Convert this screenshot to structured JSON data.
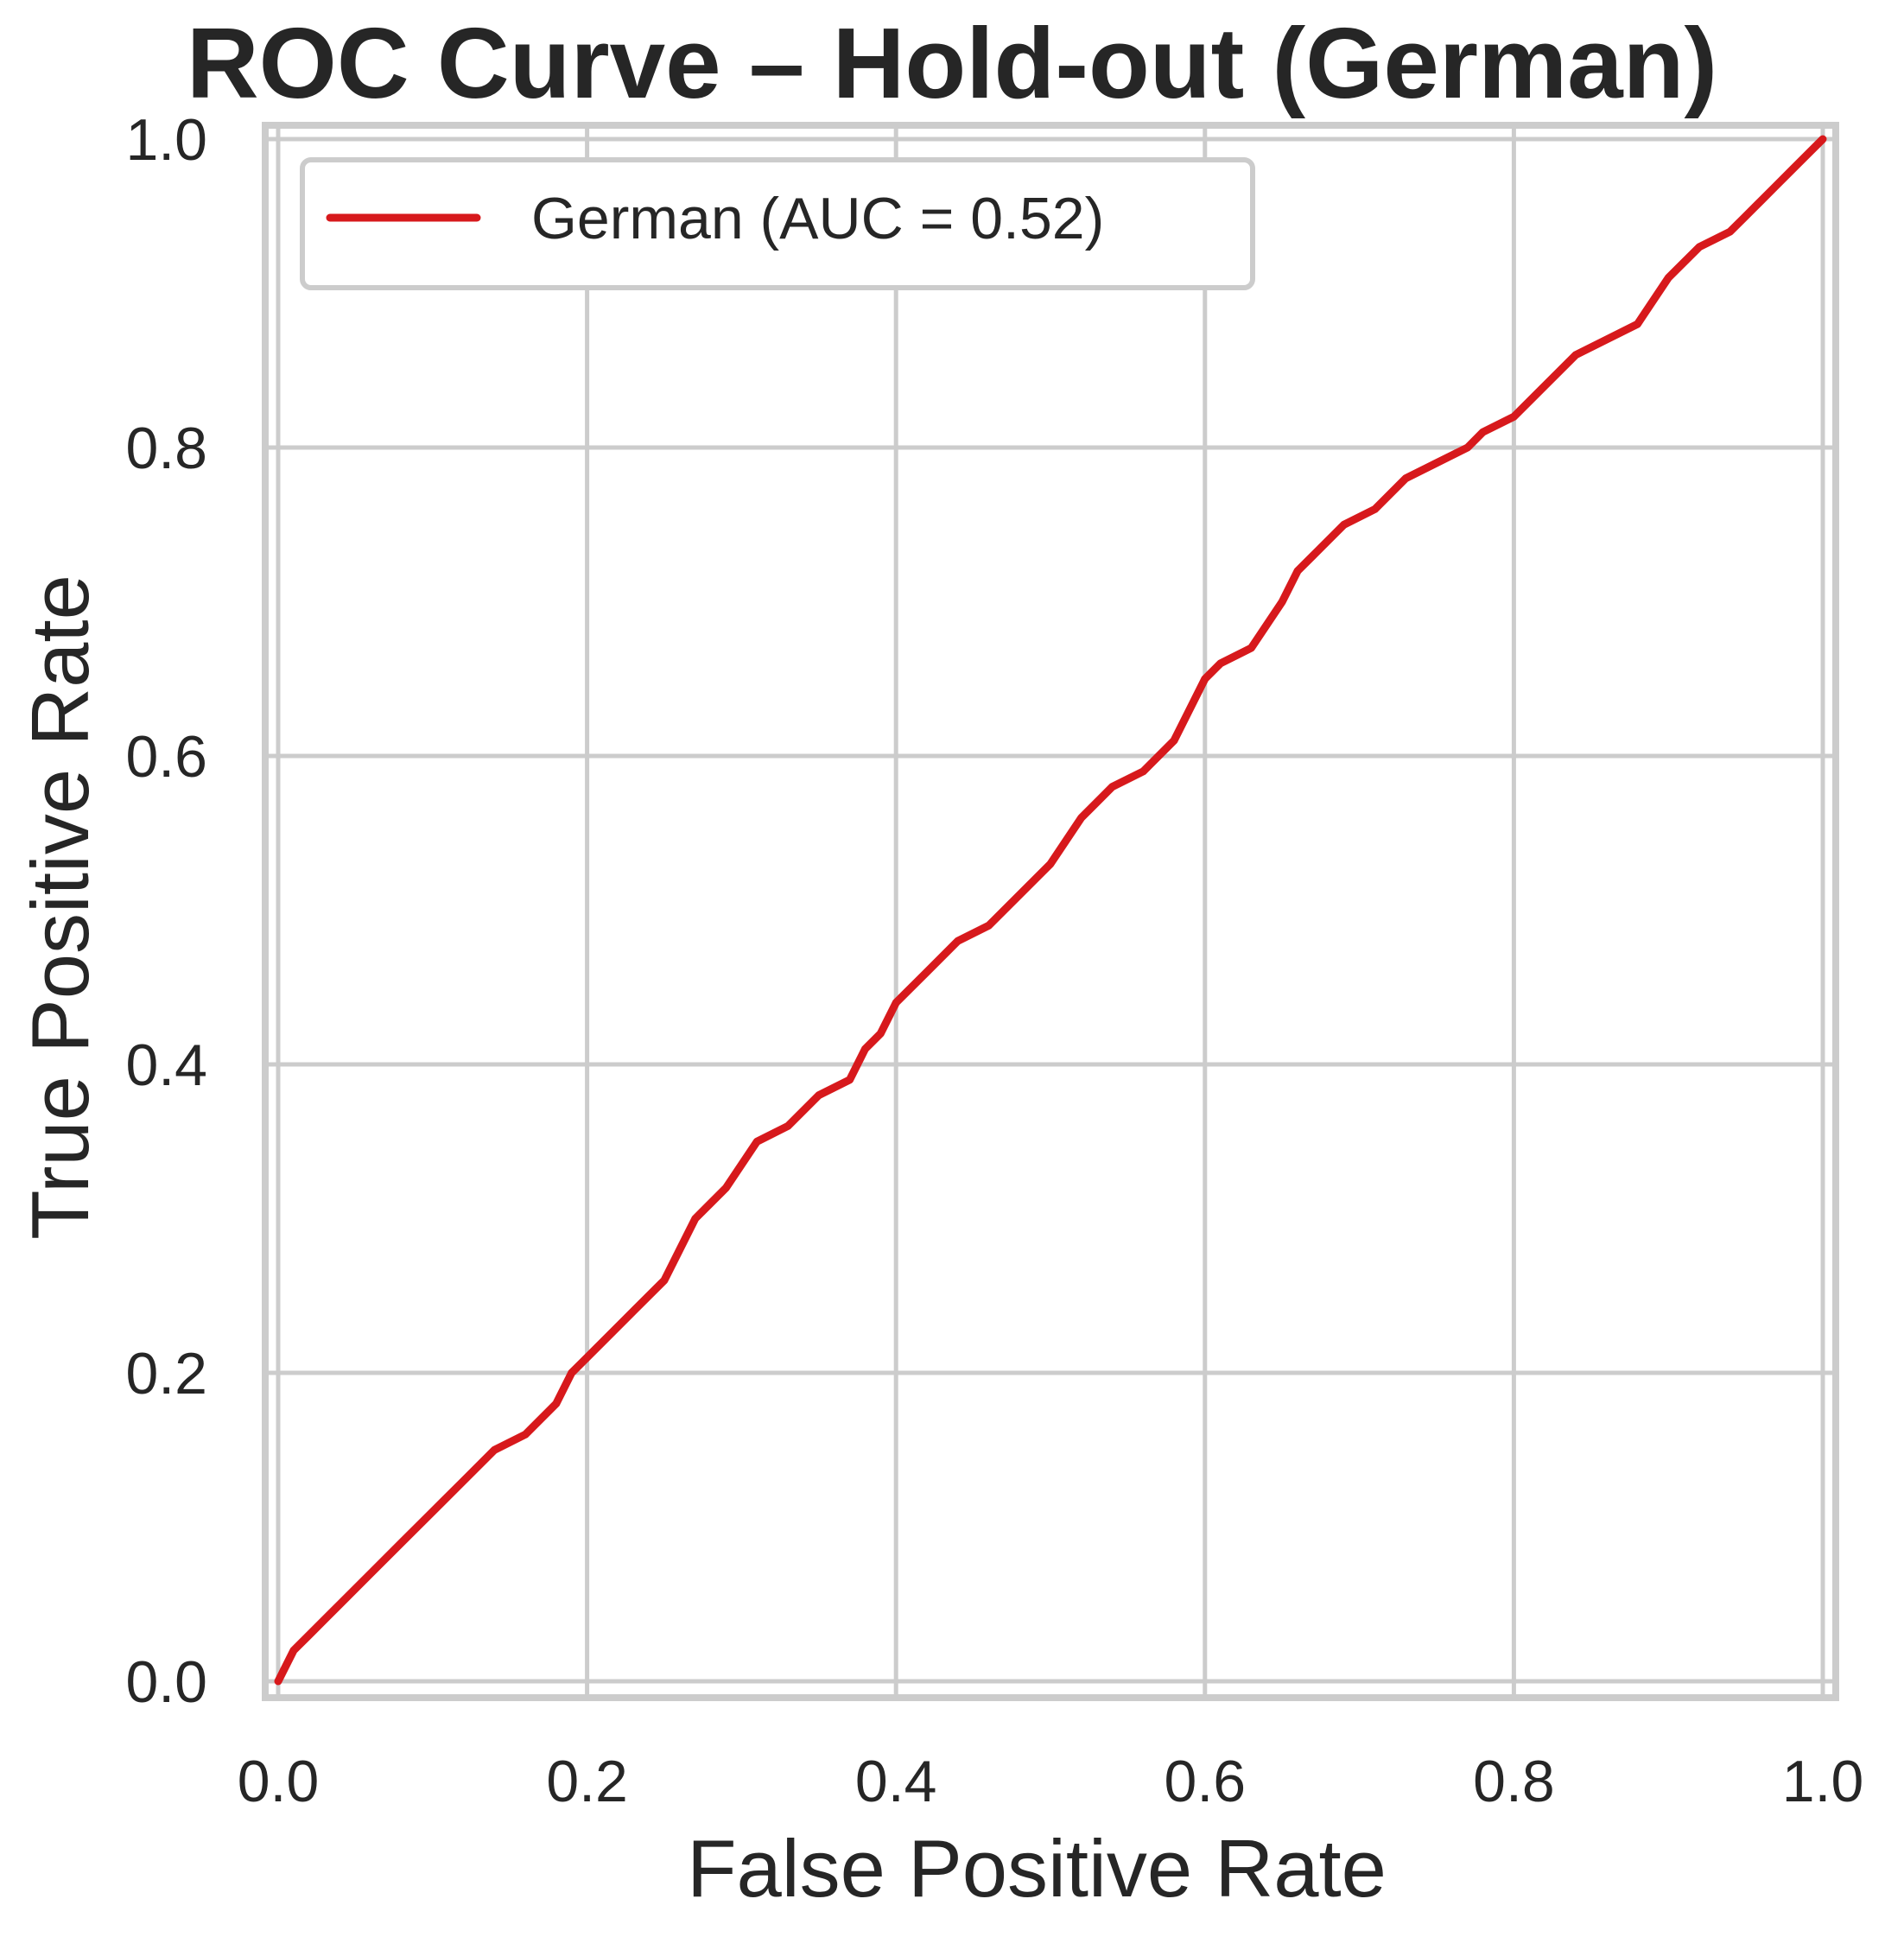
{
  "chart_data": {
    "type": "line",
    "title": "ROC Curve – Hold-out (German)",
    "xlabel": "False Positive Rate",
    "ylabel": "True Positive Rate",
    "xlim": [
      0.0,
      1.0
    ],
    "ylim": [
      0.0,
      1.0
    ],
    "xticks": [
      0.0,
      0.2,
      0.4,
      0.6,
      0.8,
      1.0
    ],
    "yticks": [
      0.0,
      0.2,
      0.4,
      0.6,
      0.8,
      1.0
    ],
    "xtick_labels": [
      "0.0",
      "0.2",
      "0.4",
      "0.6",
      "0.8",
      "1.0"
    ],
    "ytick_labels": [
      "0.0",
      "0.2",
      "0.4",
      "0.6",
      "0.8",
      "1.0"
    ],
    "grid": true,
    "legend_position": "top-left",
    "series": [
      {
        "name": "German (AUC = 0.52)",
        "color": "#d7191c",
        "x": [
          0.0,
          0.01,
          0.02,
          0.04,
          0.06,
          0.08,
          0.1,
          0.12,
          0.14,
          0.16,
          0.18,
          0.19,
          0.2,
          0.21,
          0.23,
          0.25,
          0.26,
          0.27,
          0.29,
          0.31,
          0.33,
          0.35,
          0.37,
          0.38,
          0.39,
          0.4,
          0.42,
          0.44,
          0.46,
          0.48,
          0.5,
          0.52,
          0.54,
          0.56,
          0.58,
          0.59,
          0.6,
          0.61,
          0.63,
          0.65,
          0.66,
          0.67,
          0.69,
          0.71,
          0.73,
          0.75,
          0.77,
          0.78,
          0.8,
          0.82,
          0.84,
          0.86,
          0.88,
          0.9,
          0.92,
          0.94,
          0.95,
          0.96,
          0.97,
          0.98,
          0.99,
          1.0
        ],
        "y": [
          0.0,
          0.02,
          0.03,
          0.05,
          0.07,
          0.09,
          0.11,
          0.13,
          0.15,
          0.16,
          0.18,
          0.2,
          0.21,
          0.22,
          0.24,
          0.26,
          0.28,
          0.3,
          0.32,
          0.35,
          0.36,
          0.38,
          0.39,
          0.41,
          0.42,
          0.44,
          0.46,
          0.48,
          0.49,
          0.51,
          0.53,
          0.56,
          0.58,
          0.59,
          0.61,
          0.63,
          0.65,
          0.66,
          0.67,
          0.7,
          0.72,
          0.73,
          0.75,
          0.76,
          0.78,
          0.79,
          0.8,
          0.81,
          0.82,
          0.84,
          0.86,
          0.87,
          0.88,
          0.91,
          0.93,
          0.94,
          0.95,
          0.96,
          0.97,
          0.98,
          0.99,
          1.0
        ]
      }
    ]
  }
}
